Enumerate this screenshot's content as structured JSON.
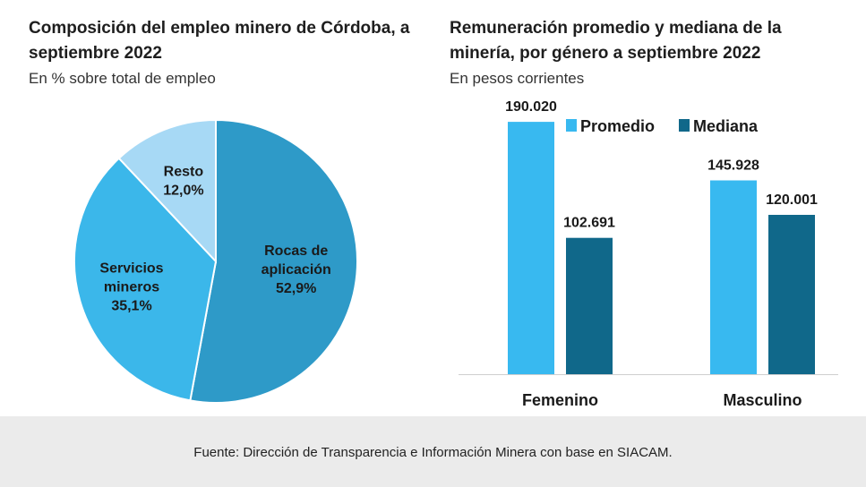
{
  "pie_chart": {
    "title": "Composición del empleo minero de Córdoba, a septiembre 2022",
    "subtitle": "En % sobre total de empleo"
  },
  "bar_chart": {
    "title": "Remuneración promedio y mediana de la minería, por género a septiembre 2022",
    "subtitle": "En pesos corrientes"
  },
  "chart_data": [
    {
      "type": "pie",
      "title": "Composición del empleo minero de Córdoba, a septiembre 2022",
      "subtitle": "En % sobre total de empleo",
      "slices": [
        {
          "label": [
            "Rocas de",
            "aplicación"
          ],
          "value": 52.9,
          "value_label": "52,9%",
          "color": "#2e9ac8"
        },
        {
          "label": [
            "Servicios",
            "mineros"
          ],
          "value": 35.1,
          "value_label": "35,1%",
          "color": "#3bb7ea"
        },
        {
          "label": [
            "Resto"
          ],
          "value": 12.0,
          "value_label": "12,0%",
          "color": "#a7d9f5"
        }
      ]
    },
    {
      "type": "bar",
      "title": "Remuneración promedio y mediana de la minería, por género a septiembre 2022",
      "subtitle": "En pesos corrientes",
      "categories": [
        "Femenino",
        "Masculino"
      ],
      "series": [
        {
          "name": "Promedio",
          "values": [
            190020,
            145928
          ],
          "value_labels": [
            "190.020",
            "145.928"
          ],
          "color": "#38b9f0"
        },
        {
          "name": "Mediana",
          "values": [
            102691,
            120001
          ],
          "value_labels": [
            "102.691",
            "120.001"
          ],
          "color": "#10688a"
        }
      ],
      "legend": "top",
      "ylim": [
        0,
        240000
      ],
      "grid": false
    }
  ],
  "footer": {
    "source": "Fuente: Dirección de Transparencia e Información Minera con base en SIACAM."
  }
}
